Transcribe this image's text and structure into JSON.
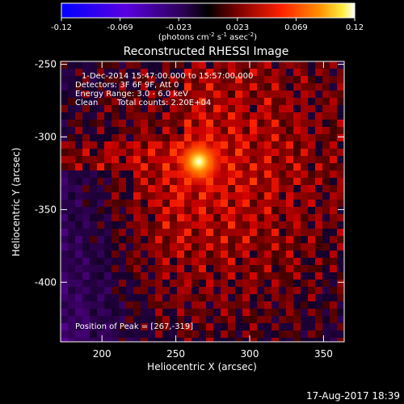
{
  "colorbar": {
    "ticks": [
      "-0.12",
      "-0.069",
      "-0.023",
      "0.023",
      "0.069",
      "0.12"
    ],
    "units_main": "(photons cm",
    "units_sup1": "-2",
    "units_mid": " s",
    "units_sup2": "-1",
    "units_end": " asec",
    "units_sup3": "-2",
    "units_close": ")"
  },
  "chart_data": {
    "type": "heatmap",
    "title": "Reconstructed RHESSI Image",
    "xlabel": "Heliocentric X (arcsec)",
    "ylabel": "Heliocentric Y (arcsec)",
    "xlim": [
      172,
      364
    ],
    "ylim": [
      -441,
      -248
    ],
    "xticks": [
      200,
      250,
      300,
      350
    ],
    "yticks": [
      -250,
      -300,
      -350,
      -400
    ],
    "colorbar_range": [
      -0.12,
      0.12
    ],
    "colormap": "blue-purple-black-red-orange-yellow-white",
    "peak": {
      "x": 267,
      "y": -319
    },
    "annotations": {
      "time": "1-Dec-2014 15:47:00.000 to 15:57:00.000",
      "detectors": "Detectors: 3F 6F 9F, Att 0",
      "energy": "Energy Range: 3.0 - 6.0 keV",
      "clean": "Clean",
      "counts": "Total counts: 2.20E+04",
      "peak_label": "Position of Peak = [267,-319]"
    }
  },
  "footer": {
    "timestamp": "17-Aug-2017 18:39"
  }
}
